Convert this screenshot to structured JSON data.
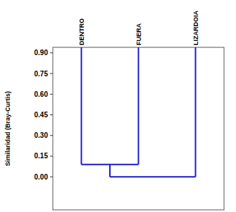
{
  "chart_data": {
    "type": "dendrogram",
    "y_label": "Similaridad (Bray-Curtis)",
    "leaves": [
      "DENTRO",
      "FUERA",
      "LIZARDOIA"
    ],
    "merges": [
      {
        "children": [
          0,
          1
        ],
        "height": 0.09
      },
      {
        "children": [
          3,
          2
        ],
        "height": 0.0
      }
    ],
    "color": "#1a1acc",
    "ylim": [
      -0.24,
      0.94
    ],
    "yticks": [
      {
        "value": 0,
        "label": "0.00"
      },
      {
        "value": 0.15,
        "label": "0.15"
      },
      {
        "value": 0.3,
        "label": "0.30"
      },
      {
        "value": 0.45,
        "label": "0.45"
      },
      {
        "value": 0.6,
        "label": "0.60"
      },
      {
        "value": 0.75,
        "label": "0.75"
      },
      {
        "value": 0.9,
        "label": "0.90"
      }
    ],
    "tick_labels": "y"
  }
}
